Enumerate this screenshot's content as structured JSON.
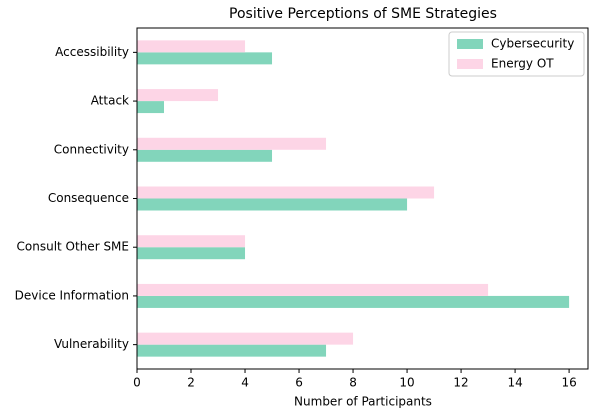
{
  "chart_data": {
    "type": "barh",
    "title": "Positive Perceptions of SME Strategies",
    "xlabel": "Number of Participants",
    "categories": [
      "Accessibility",
      "Attack",
      "Connectivity",
      "Consequence",
      "Consult Other SME",
      "Device Information",
      "Vulnerability"
    ],
    "series": [
      {
        "name": "Cybersecurity",
        "color": "#82d5bb",
        "values": [
          5,
          1,
          5,
          10,
          4,
          16,
          7
        ]
      },
      {
        "name": "Energy OT",
        "color": "#fdd5e6",
        "values": [
          4,
          3,
          7,
          11,
          4,
          13,
          8
        ]
      }
    ],
    "xlim": [
      0,
      16.7
    ],
    "xticks": [
      0,
      2,
      4,
      6,
      8,
      10,
      12,
      14,
      16
    ],
    "legend": "upper right",
    "grid": false
  }
}
